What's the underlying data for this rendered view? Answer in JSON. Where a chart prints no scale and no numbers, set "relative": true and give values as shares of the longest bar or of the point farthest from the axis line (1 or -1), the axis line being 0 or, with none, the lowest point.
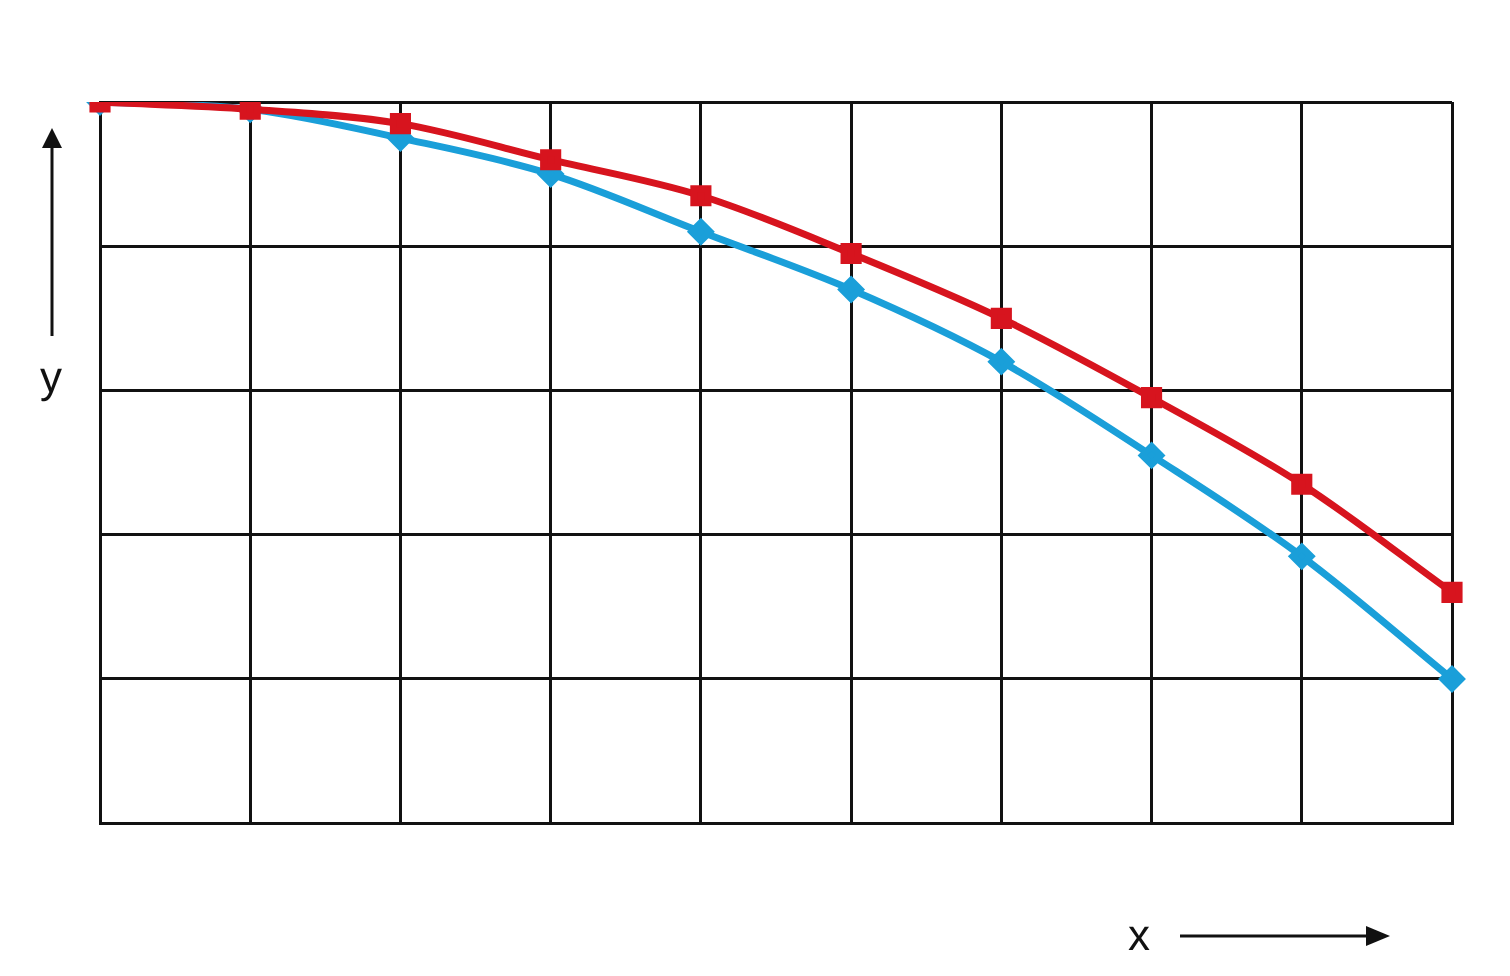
{
  "chart_data": {
    "type": "line",
    "relative": true,
    "xlabel": "x",
    "ylabel": "y",
    "grid": true,
    "line_style": "solid",
    "categories": [
      null,
      null,
      null,
      null,
      null,
      null,
      null,
      null,
      null,
      null
    ],
    "series": [
      {
        "color": "#d7141e",
        "marker": "square",
        "values": [
          1,
          0.99,
          0.97,
          0.92,
          0.87,
          0.79,
          0.7,
          0.59,
          0.47,
          0.32
        ]
      },
      {
        "color": "#1a9fd9",
        "marker": "diamond",
        "values": [
          1,
          0.99,
          0.95,
          0.9,
          0.82,
          0.74,
          0.64,
          0.51,
          0.37,
          0.2
        ]
      }
    ]
  }
}
